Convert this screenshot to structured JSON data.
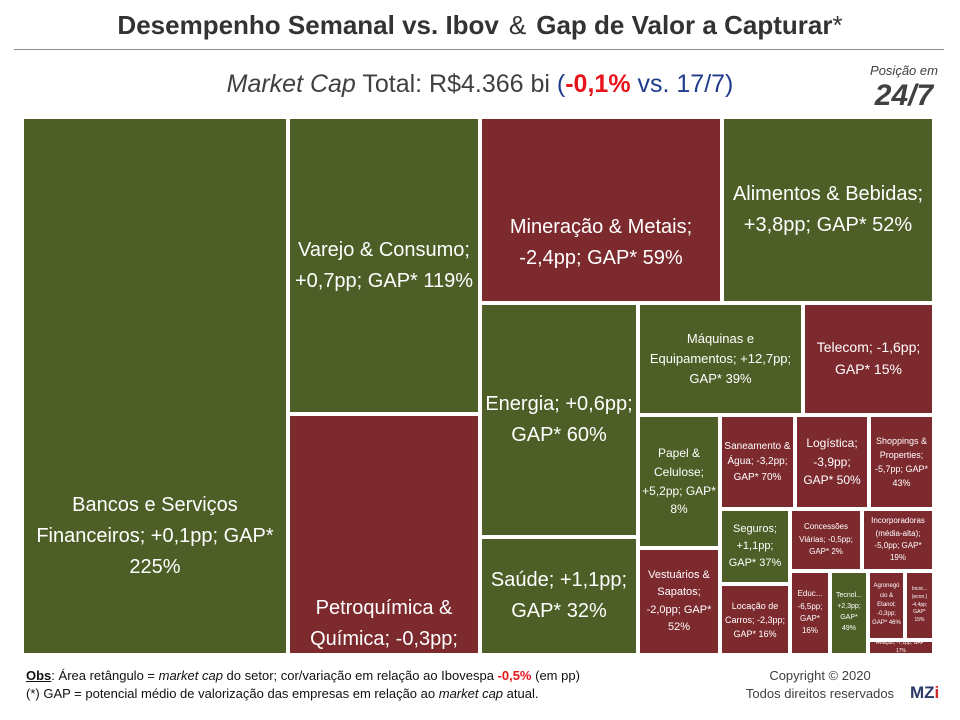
{
  "title": {
    "part1": "Desempenho Semanal vs. Ibov",
    "amp": "&",
    "part2": "Gap de Valor a Capturar",
    "star": "*"
  },
  "subtitle": {
    "italic": "Market Cap",
    "rest": " Total: R$4.366 bi  ",
    "open": "(",
    "change": "-0,1%",
    "tail": " vs. 17/7)"
  },
  "position": {
    "label": "Posição em",
    "date": "24/7"
  },
  "colors": {
    "outperform": "#4d5e26",
    "underperform": "#7d2a2e"
  },
  "chart_data": {
    "type": "treemap",
    "size_measure": "market cap do setor",
    "color_measure": "variação em relação ao Ibovespa",
    "tiles": [
      {
        "sector": "Bancos e Serviços Financeiros",
        "label": "Bancos e Serviços Financeiros; +0,1pp; GAP* 225%",
        "relative_change_pp": 0.1,
        "gap_pct": 225
      },
      {
        "sector": "Varejo & Consumo",
        "label": "Varejo & Consumo; +0,7pp; GAP* 119%",
        "relative_change_pp": 0.7,
        "gap_pct": 119
      },
      {
        "sector": "Petroquímica & Química",
        "label": "Petroquímica & Química; -0,3pp; GAP* 82%",
        "relative_change_pp": -0.3,
        "gap_pct": 82
      },
      {
        "sector": "Mineração & Metais",
        "label": "Mineração & Metais; -2,4pp; GAP* 59%",
        "relative_change_pp": -2.4,
        "gap_pct": 59
      },
      {
        "sector": "Alimentos & Bebidas",
        "label": "Alimentos & Bebidas; +3,8pp; GAP* 52%",
        "relative_change_pp": 3.8,
        "gap_pct": 52
      },
      {
        "sector": "Energia",
        "label": "Energia; +0,6pp; GAP* 60%",
        "relative_change_pp": 0.6,
        "gap_pct": 60
      },
      {
        "sector": "Saúde",
        "label": "Saúde; +1,1pp; GAP* 32%",
        "relative_change_pp": 1.1,
        "gap_pct": 32
      },
      {
        "sector": "Máquinas e Equipamentos",
        "label": "Máquinas e Equipamentos; +12,7pp; GAP* 39%",
        "relative_change_pp": 12.7,
        "gap_pct": 39
      },
      {
        "sector": "Telecom",
        "label": "Telecom; -1,6pp; GAP* 15%",
        "relative_change_pp": -1.6,
        "gap_pct": 15
      },
      {
        "sector": "Papel & Celulose",
        "label": "Papel & Celulose; +5,2pp; GAP* 8%",
        "relative_change_pp": 5.2,
        "gap_pct": 8
      },
      {
        "sector": "Saneamento & Água",
        "label": "Saneamento & Água; -3,2pp; GAP* 70%",
        "relative_change_pp": -3.2,
        "gap_pct": 70
      },
      {
        "sector": "Logística",
        "label": "Logística; -3,9pp; GAP* 50%",
        "relative_change_pp": -3.9,
        "gap_pct": 50
      },
      {
        "sector": "Shoppings & Properties",
        "label": "Shoppings & Properties; -5,7pp; GAP* 43%",
        "relative_change_pp": -5.7,
        "gap_pct": 43
      },
      {
        "sector": "Seguros",
        "label": "Seguros; +1,1pp; GAP* 37%",
        "relative_change_pp": 1.1,
        "gap_pct": 37
      },
      {
        "sector": "Concessões Viárias",
        "label": "Concessões Viárias; -0,5pp; GAP* 2%",
        "relative_change_pp": -0.5,
        "gap_pct": 2
      },
      {
        "sector": "Incorporadoras (média-alta)",
        "label": "Incorporadoras (média-alta); -5,0pp; GAP* 19%",
        "relative_change_pp": -5.0,
        "gap_pct": 19
      },
      {
        "sector": "Vestuários & Sapatos",
        "label": "Vestuários & Sapatos; -2,0pp; GAP* 52%",
        "relative_change_pp": -2.0,
        "gap_pct": 52
      },
      {
        "sector": "Locação de Carros",
        "label": "Locação de Carros; -2,3pp; GAP* 16%",
        "relative_change_pp": -2.3,
        "gap_pct": 16
      },
      {
        "sector": "Educ...",
        "label": "Educ... -6,5pp; GAP* 16%",
        "relative_change_pp": -6.5,
        "gap_pct": 16
      },
      {
        "sector": "Tecnol...",
        "label": "Tecnol... +2,3pp; GAP* 49%",
        "relative_change_pp": 2.3,
        "gap_pct": 49
      },
      {
        "sector": "Agronegócio & Etanol",
        "label": "Agronegó cio & Etanol; -0,3pp; GAP* 46%",
        "relative_change_pp": -0.3,
        "gap_pct": 46
      },
      {
        "sector": "Incor... (econ.)",
        "label": "Incor... (econ.) -4,4pp; GAP* 15%",
        "relative_change_pp": -4.4,
        "gap_pct": 15
      },
      {
        "sector": "Aviação",
        "label": "Aviação; -7,1pp; GAP* 17%",
        "relative_change_pp": -7.1,
        "gap_pct": 17
      }
    ]
  },
  "footer": {
    "obs_label": "Obs",
    "obs_text1": ": Área retângulo = ",
    "obs_it1": "market cap",
    "obs_text2": " do setor; cor/variação em relação ao Ibovespa ",
    "obs_ibov": "-0,5%",
    "obs_text3": " (em pp)",
    "gap_text1": "(*) GAP = potencial médio de valorização das empresas em relação ao ",
    "gap_it": "market cap",
    "gap_text2": " atual.",
    "copyright": "Copyright © 2020",
    "rights": "Todos direitos reservados",
    "logo_main": "MZ",
    "logo_i": "i"
  }
}
